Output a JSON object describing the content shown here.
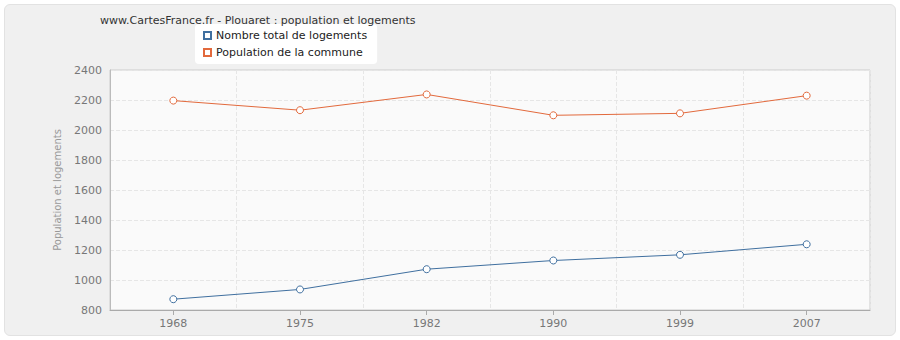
{
  "chart_data": {
    "type": "line",
    "title": "www.CartesFrance.fr - Plouaret : population et logements",
    "y_label": "Population et logements",
    "categories": [
      "1968",
      "1975",
      "1982",
      "1990",
      "1999",
      "2007"
    ],
    "series": [
      {
        "name": "Nombre total de logements",
        "color": "#3f6f9f",
        "marker": "circle",
        "values": [
          872,
          937,
          1072,
          1130,
          1168,
          1238
        ]
      },
      {
        "name": "Population de la commune",
        "color": "#e2693c",
        "marker": "circle",
        "values": [
          2196,
          2132,
          2237,
          2098,
          2111,
          2229
        ]
      }
    ],
    "ylim": [
      800,
      2400
    ],
    "yticks": [
      800,
      1000,
      1200,
      1400,
      1600,
      1800,
      2000,
      2200,
      2400
    ],
    "grid": true,
    "legend": "top-left"
  }
}
